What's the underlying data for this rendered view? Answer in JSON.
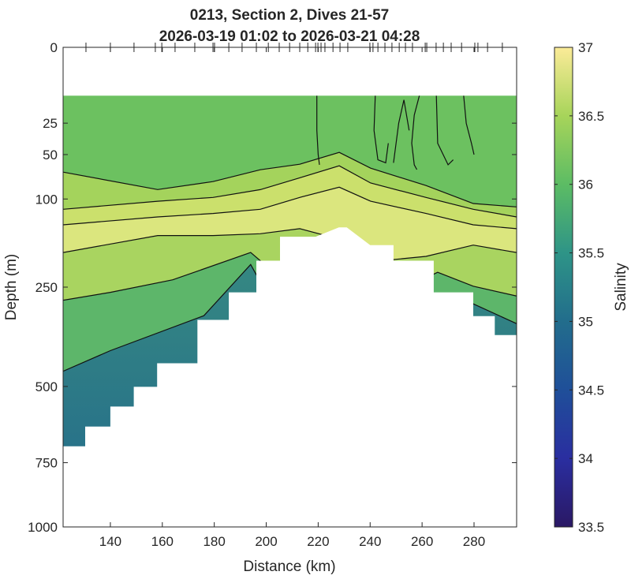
{
  "chart_data": {
    "type": "heatmap",
    "title": [
      "0213, Section 2, Dives 21-57",
      "2026-03-19 01:02 to 2026-03-21 04:28"
    ],
    "xlabel": "Distance (km)",
    "ylabel": "Depth (m)",
    "colorbar_label": "Salinity",
    "xlim": [
      121.8,
      296.4
    ],
    "ylim": [
      0,
      1000
    ],
    "y_scale": "sqrt",
    "xticks": [
      140,
      160,
      180,
      200,
      220,
      240,
      260,
      280
    ],
    "yticks": [
      0,
      25,
      50,
      100,
      250,
      500,
      750,
      1000
    ],
    "clim": [
      33.5,
      37
    ],
    "cticks": [
      33.5,
      34,
      34.5,
      35,
      35.5,
      36,
      36.5,
      37
    ],
    "colormap": [
      {
        "v": 33.5,
        "c": "#2a1864"
      },
      {
        "v": 34,
        "c": "#2a2ea0"
      },
      {
        "v": 34.5,
        "c": "#1f4f99"
      },
      {
        "v": 35,
        "c": "#226d8c"
      },
      {
        "v": 35.5,
        "c": "#2e9487"
      },
      {
        "v": 36,
        "c": "#5cbc64"
      },
      {
        "v": 36.5,
        "c": "#a7d45a"
      },
      {
        "v": 37,
        "c": "#fbeb98"
      }
    ],
    "data_top_depth": 10,
    "dive_positions_km": [
      130.6,
      140,
      149.1,
      157.3,
      159.8,
      164.9,
      172.5,
      179.5,
      180.1,
      185.6,
      190.7,
      196.2,
      200.8,
      205,
      209,
      212.9,
      216,
      219,
      219.9,
      221.1,
      222.6,
      225.7,
      228.4,
      231.4,
      239.9,
      241.1,
      243,
      245.7,
      248.4,
      251.2,
      253.6,
      256.3,
      261.2,
      261.8,
      265.4,
      268.2,
      271.2,
      275.2,
      280.3,
      281.5,
      285.2,
      290.9
    ],
    "bottom_profile": {
      "distance": [
        121.8,
        130.3,
        130.3,
        140,
        140,
        149,
        149,
        158,
        158,
        173.5,
        173.5,
        185.6,
        185.6,
        196.2,
        196.2,
        205.3,
        205.3,
        219,
        228,
        231,
        240,
        249,
        249,
        264.5,
        264.5,
        279.7,
        279.7,
        288,
        288,
        296.4
      ],
      "depth": [
        692,
        692,
        625,
        625,
        561,
        561,
        501,
        501,
        434,
        434,
        323,
        323,
        261,
        261,
        198,
        198,
        156,
        156,
        141,
        141,
        170,
        170,
        198,
        198,
        261,
        261,
        314,
        314,
        360,
        360
      ]
    },
    "layers": [
      {
        "fill": "#6cc160",
        "contour": {
          "distance": [
            121.8,
            158.2,
            179.5,
            197.7,
            212.9,
            228.1,
            240.2,
            261.5,
            279.7,
            296.4
          ],
          "depth": [
            67.7,
            87.9,
            78.4,
            65.2,
            59.4,
            48,
            63.5,
            83,
            106,
            110.7
          ]
        }
      },
      {
        "fill": "#a4d35c",
        "contour": {
          "distance": [
            121.8,
            158.2,
            179.5,
            197.7,
            212.9,
            228.1,
            240.2,
            261.5,
            279.7,
            296.4
          ],
          "depth": [
            114,
            103,
            98,
            88,
            74,
            61,
            80,
            98,
            114,
            125
          ]
        }
      },
      {
        "fill": "#cbe06c",
        "contour": {
          "distance": [
            121.8,
            158.2,
            179.5,
            197.7,
            212.9,
            228.1,
            240.2,
            261.5,
            279.7,
            296.4
          ],
          "depth": [
            137,
            125,
            120,
            114,
            98,
            85,
            103,
            120,
            137,
            143
          ]
        }
      },
      {
        "fill": "#dbe67e",
        "contour": {
          "distance": [
            121.8,
            158.2,
            179.5,
            197.7,
            212.9,
            228.1,
            240.2,
            261.5,
            279.7,
            296.4
          ],
          "depth": [
            183,
            154,
            154,
            151,
            143,
            160,
            200,
            190,
            170,
            183
          ]
        }
      },
      {
        "fill": "#a9d460",
        "contour": {
          "distance": [
            121.8,
            140,
            164,
            194,
            220,
            250,
            266,
            279.7,
            296.4
          ],
          "depth": [
            278,
            261,
            235,
            183,
            300,
            260,
            220,
            248,
            269
          ]
        }
      },
      {
        "fill": "#5db66a",
        "contour": {
          "distance": [
            121.8,
            140,
            176,
            194,
            220,
            250,
            279.7,
            296.4
          ],
          "depth": [
            456,
            400,
            313,
            205,
            500,
            400,
            286,
            332
          ]
        }
      }
    ],
    "deep_fill": [
      "#44a07a",
      "#236a8c"
    ],
    "vertical_contours": [
      {
        "distance": [
          219.5,
          219.5,
          220,
          220.5
        ],
        "depth": [
          10,
          30,
          50,
          60
        ]
      },
      {
        "distance": [
          242,
          241.5,
          243,
          246,
          247
        ],
        "depth": [
          10,
          30,
          55,
          58,
          40
        ]
      },
      {
        "distance": [
          249,
          251,
          253,
          255
        ],
        "depth": [
          58,
          25,
          12,
          30
        ]
      },
      {
        "distance": [
          259,
          257,
          256,
          257,
          258
        ],
        "depth": [
          10,
          20,
          40,
          60,
          65
        ]
      },
      {
        "distance": [
          265.5,
          266,
          270,
          272
        ],
        "depth": [
          10,
          40,
          60,
          55
        ]
      },
      {
        "distance": [
          276,
          277,
          279,
          280
        ],
        "depth": [
          10,
          25,
          40,
          50
        ]
      }
    ]
  }
}
